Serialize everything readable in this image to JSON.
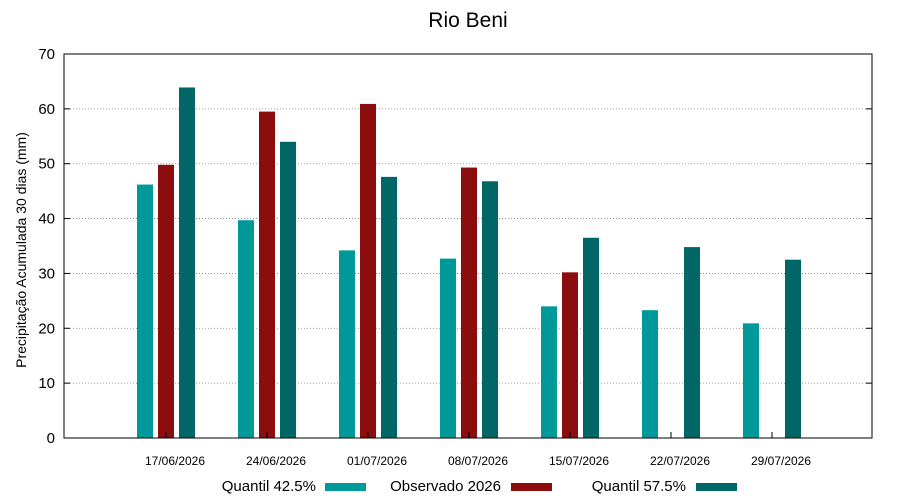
{
  "chart_data": {
    "type": "bar",
    "title": "Rio Beni",
    "xlabel": "",
    "ylabel": "Precipitação Acumulada 30 dias (mm)",
    "ylim": [
      0,
      70
    ],
    "yticks": [
      0,
      10,
      20,
      30,
      40,
      50,
      60,
      70
    ],
    "grid": true,
    "legend_position": "bottom",
    "categories": [
      "17/06/2026",
      "24/06/2026",
      "01/07/2026",
      "08/07/2026",
      "15/07/2026",
      "22/07/2026",
      "29/07/2026"
    ],
    "series": [
      {
        "name": "Quantil 42.5%",
        "color": "#009999",
        "values": [
          46.2,
          39.7,
          34.2,
          32.7,
          24.0,
          23.3,
          20.9
        ]
      },
      {
        "name": "Observado 2026",
        "color": "#8b0d0d",
        "values": [
          49.8,
          59.5,
          60.9,
          49.3,
          30.2,
          null,
          null
        ]
      },
      {
        "name": "Quantil 57.5%",
        "color": "#006666",
        "values": [
          63.9,
          54.0,
          47.6,
          46.8,
          36.5,
          34.8,
          32.5
        ]
      }
    ]
  }
}
